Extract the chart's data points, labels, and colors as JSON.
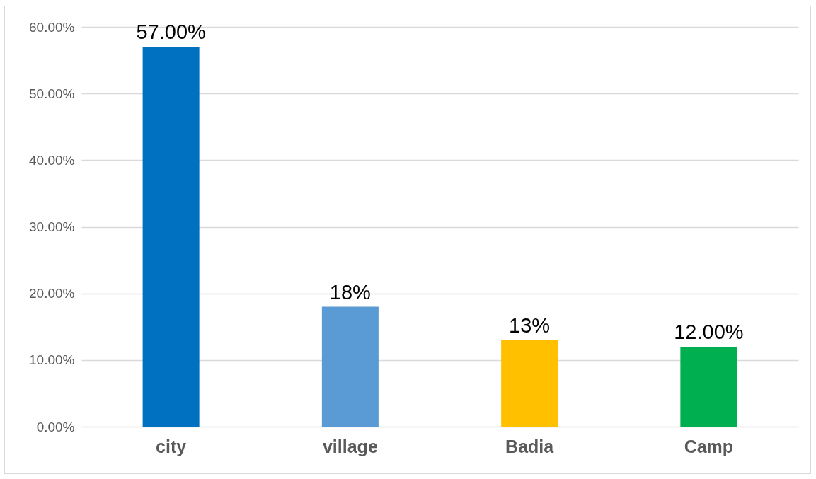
{
  "chart_data": {
    "type": "bar",
    "categories": [
      "city",
      "village",
      "Badia",
      "Camp"
    ],
    "values": [
      57,
      18,
      13,
      12
    ],
    "colors": [
      "#0070c0",
      "#5b9bd5",
      "#ffc000",
      "#00b050"
    ],
    "value_labels": [
      "57.00%",
      "18%",
      "13%",
      "12.00%"
    ],
    "ylim": [
      0,
      60
    ],
    "yticks": [
      {
        "value": 0,
        "label": "0.00%"
      },
      {
        "value": 10,
        "label": "10.00%"
      },
      {
        "value": 20,
        "label": "20.00%"
      },
      {
        "value": 30,
        "label": "30.00%"
      },
      {
        "value": 40,
        "label": "40.00%"
      },
      {
        "value": 50,
        "label": "50.00%"
      },
      {
        "value": 60,
        "label": "60.00%"
      }
    ],
    "grid": "y"
  }
}
